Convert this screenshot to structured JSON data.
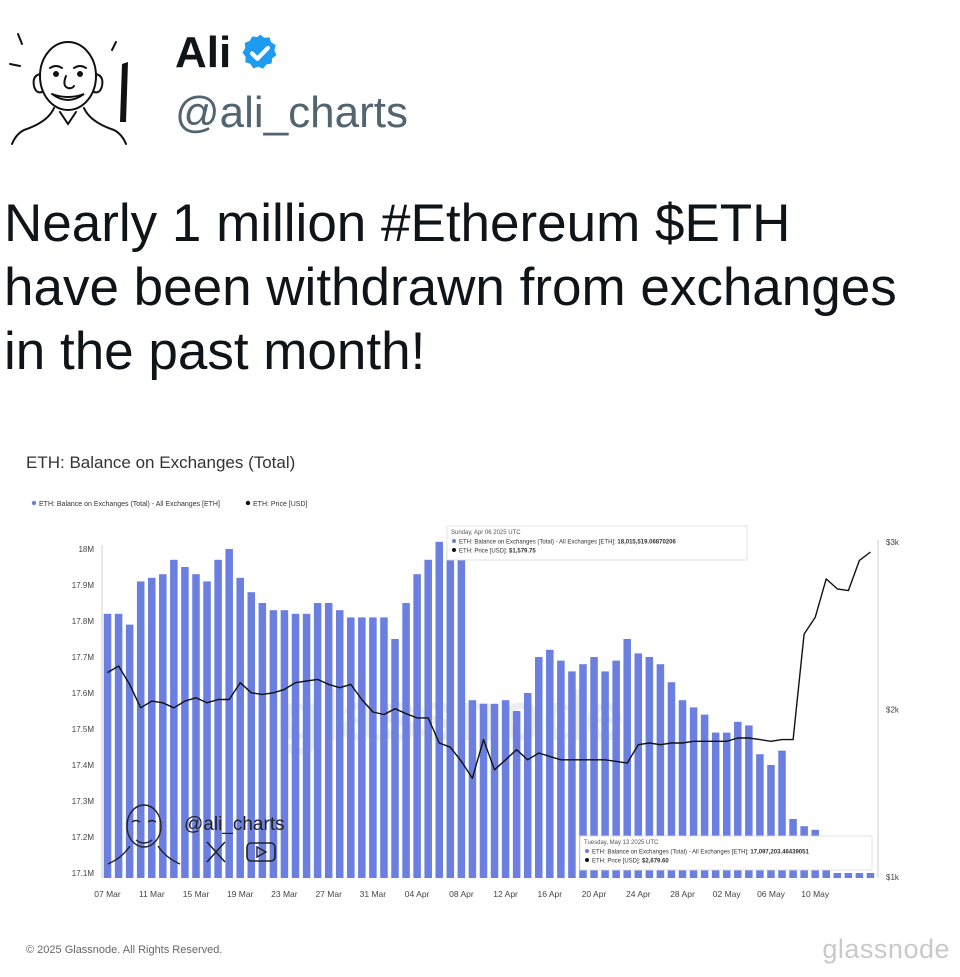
{
  "author": {
    "display_name": "Ali",
    "handle": "@ali_charts",
    "verified": true,
    "verified_color": "#1d9bf0",
    "avatar_icon": "cartoon-face-avatar-icon"
  },
  "tweet": {
    "text": "Nearly 1 million #Ethereum $ETH\nhave been withdrawn from exchanges\nin the past month!"
  },
  "footer": {
    "copyright": "© 2025 Glassnode. All Rights Reserved.",
    "brand": "glassnode"
  },
  "watermark": {
    "handle": "@ali_charts",
    "icons": [
      "x-logo-icon",
      "youtube-icon"
    ]
  },
  "chart_data": {
    "type": "bar",
    "title": "ETH: Balance on Exchanges (Total)",
    "legend_position": "top-left",
    "grid": false,
    "bar_color": "#6a7fe0",
    "line_color": "#111111",
    "series": [
      {
        "name": "ETH: Balance on Exchanges (Total) - All Exchanges [ETH]",
        "kind": "bar",
        "axis": "left",
        "values": [
          17.82,
          17.82,
          17.79,
          17.91,
          17.92,
          17.93,
          17.97,
          17.95,
          17.93,
          17.91,
          17.97,
          18.0,
          17.92,
          17.88,
          17.85,
          17.83,
          17.83,
          17.82,
          17.82,
          17.85,
          17.85,
          17.83,
          17.81,
          17.81,
          17.81,
          17.81,
          17.75,
          17.85,
          17.93,
          17.97,
          18.02,
          18.0,
          18.01,
          17.58,
          17.57,
          17.57,
          17.58,
          17.55,
          17.6,
          17.7,
          17.72,
          17.69,
          17.66,
          17.68,
          17.7,
          17.66,
          17.69,
          17.75,
          17.71,
          17.7,
          17.68,
          17.63,
          17.58,
          17.56,
          17.54,
          17.49,
          17.49,
          17.52,
          17.51,
          17.43,
          17.4,
          17.44,
          17.25,
          17.23,
          17.22,
          17.13,
          17.1,
          17.1,
          17.1,
          17.1
        ]
      },
      {
        "name": "ETH: Price [USD]",
        "kind": "line",
        "axis": "right",
        "values": [
          2220,
          2260,
          2150,
          2010,
          2050,
          2040,
          2010,
          2050,
          2070,
          2040,
          2060,
          2060,
          2160,
          2100,
          2090,
          2100,
          2120,
          2160,
          2170,
          2180,
          2150,
          2130,
          2150,
          2060,
          1985,
          1970,
          2005,
          1975,
          1950,
          1950,
          1800,
          1775,
          1690,
          1590,
          1820,
          1640,
          1700,
          1760,
          1700,
          1740,
          1720,
          1700,
          1700,
          1700,
          1700,
          1700,
          1690,
          1680,
          1790,
          1800,
          1790,
          1800,
          1800,
          1810,
          1810,
          1810,
          1810,
          1830,
          1830,
          1820,
          1810,
          1820,
          1820,
          2450,
          2550,
          2780,
          2720,
          2710,
          2890,
          2940
        ]
      }
    ],
    "x_tick_labels": [
      "07 Mar",
      "11 Mar",
      "15 Mar",
      "19 Mar",
      "23 Mar",
      "27 Mar",
      "31 Mar",
      "04 Apr",
      "08 Apr",
      "12 Apr",
      "16 Apr",
      "20 Apr",
      "24 Apr",
      "28 Apr",
      "02 May",
      "06 May",
      "10 May"
    ],
    "y_left": {
      "ticks": [
        "17.1M",
        "17.2M",
        "17.3M",
        "17.4M",
        "17.5M",
        "17.6M",
        "17.7M",
        "17.8M",
        "17.9M",
        "18M"
      ],
      "ylim": [
        17.1,
        18.0
      ]
    },
    "y_right": {
      "ticks": [
        "$1k",
        "$2k",
        "$3k"
      ],
      "ylim": [
        1000,
        3000
      ]
    },
    "tooltips": [
      {
        "date": "Sunday, Apr 06 2025 UTC",
        "balance_label": "ETH: Balance on Exchanges (Total) - All Exchanges [ETH]:",
        "balance_value": "18,015,519.06870206",
        "price_label": "ETH: Price [USD]:",
        "price_value": "$1,579.75"
      },
      {
        "date": "Tuesday, May 13 2025 UTC",
        "balance_label": "ETH: Balance on Exchanges (Total) - All Exchanges [ETH]:",
        "balance_value": "17,097,203.46439051",
        "price_label": "ETH: Price [USD]:",
        "price_value": "$2,679.60"
      }
    ]
  }
}
